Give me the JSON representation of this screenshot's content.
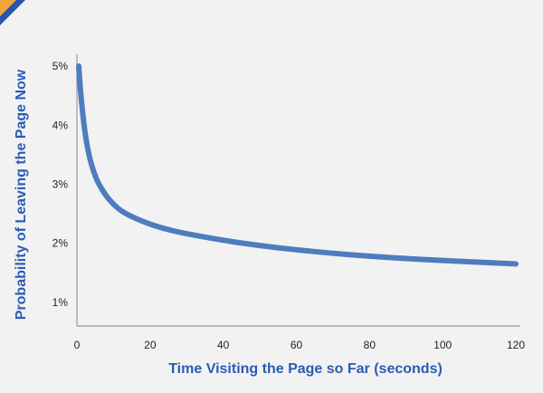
{
  "colors": {
    "background": "#f2f2f2",
    "line": "#4f7cbf",
    "axis": "#9a9a9a",
    "axis_title": "#2a5bb5",
    "corner_orange": "#f0a53a",
    "corner_blue": "#2a55a8"
  },
  "chart_data": {
    "type": "line",
    "title": "",
    "xlabel": "Time Visiting the Page so Far (seconds)",
    "ylabel": "Probability of Leaving the Page Now",
    "xlim": [
      0,
      120
    ],
    "ylim": [
      0.6,
      5.2
    ],
    "x_ticks": [
      0,
      20,
      40,
      60,
      80,
      100,
      120
    ],
    "x_tick_labels": [
      "0",
      "20",
      "40",
      "60",
      "80",
      "100",
      "120"
    ],
    "y_ticks": [
      1,
      2,
      3,
      4,
      5
    ],
    "y_tick_labels": [
      "1%",
      "2%",
      "3%",
      "4%",
      "5%"
    ],
    "grid": false,
    "series": [
      {
        "x": [
          0.5,
          1,
          2,
          3,
          4,
          5,
          6,
          8,
          10,
          12,
          15,
          20,
          25,
          30,
          40,
          50,
          60,
          70,
          80,
          90,
          100,
          110,
          120
        ],
        "values": [
          5.0,
          4.55,
          3.95,
          3.58,
          3.32,
          3.14,
          3.0,
          2.8,
          2.66,
          2.55,
          2.45,
          2.32,
          2.23,
          2.16,
          2.05,
          1.96,
          1.89,
          1.83,
          1.78,
          1.74,
          1.71,
          1.68,
          1.65
        ]
      }
    ]
  }
}
